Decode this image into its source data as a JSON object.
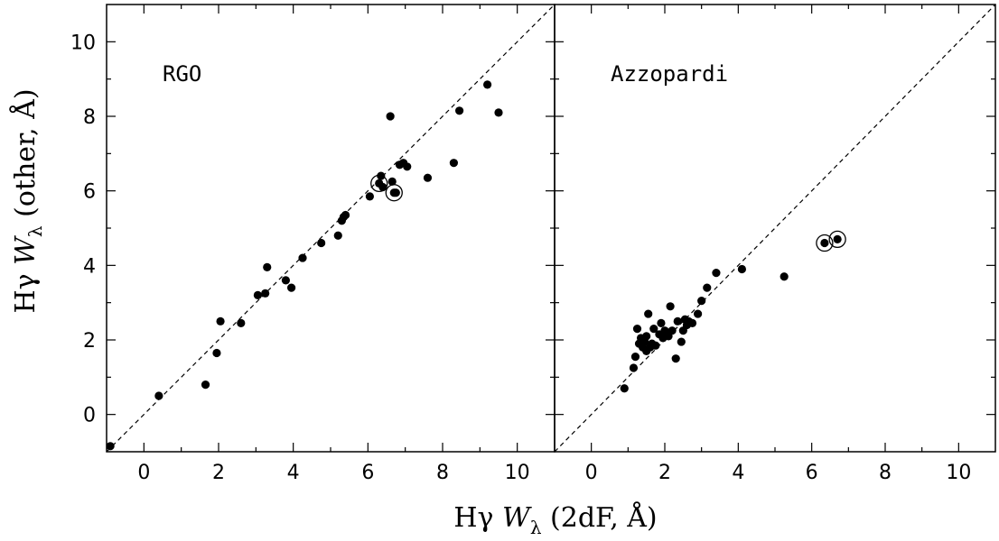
{
  "chart_data": [
    {
      "type": "scatter",
      "panel_label": "RGO",
      "xlim": [
        -1,
        11
      ],
      "ylim": [
        -1,
        11
      ],
      "x_ticks": [
        0,
        2,
        4,
        6,
        8,
        10
      ],
      "y_ticks": [
        0,
        2,
        4,
        6,
        8,
        10
      ],
      "reference_line": "y = x (dashed)",
      "points": [
        {
          "x": -0.9,
          "y": -0.85
        },
        {
          "x": 0.4,
          "y": 0.5
        },
        {
          "x": 1.65,
          "y": 0.8
        },
        {
          "x": 1.95,
          "y": 1.65
        },
        {
          "x": 2.05,
          "y": 2.5
        },
        {
          "x": 2.6,
          "y": 2.45
        },
        {
          "x": 3.05,
          "y": 3.2
        },
        {
          "x": 3.25,
          "y": 3.25
        },
        {
          "x": 3.3,
          "y": 3.95
        },
        {
          "x": 3.8,
          "y": 3.6
        },
        {
          "x": 3.95,
          "y": 3.4
        },
        {
          "x": 4.25,
          "y": 4.2
        },
        {
          "x": 4.75,
          "y": 4.6
        },
        {
          "x": 5.2,
          "y": 4.8
        },
        {
          "x": 5.3,
          "y": 5.2
        },
        {
          "x": 5.35,
          "y": 5.3
        },
        {
          "x": 5.4,
          "y": 5.35
        },
        {
          "x": 6.05,
          "y": 5.85
        },
        {
          "x": 6.3,
          "y": 6.2
        },
        {
          "x": 6.35,
          "y": 6.4
        },
        {
          "x": 6.4,
          "y": 6.1
        },
        {
          "x": 6.6,
          "y": 8.0
        },
        {
          "x": 6.65,
          "y": 6.25
        },
        {
          "x": 6.7,
          "y": 5.95
        },
        {
          "x": 6.75,
          "y": 5.95
        },
        {
          "x": 6.85,
          "y": 6.7
        },
        {
          "x": 6.95,
          "y": 6.75
        },
        {
          "x": 7.05,
          "y": 6.65
        },
        {
          "x": 7.6,
          "y": 6.35
        },
        {
          "x": 8.3,
          "y": 6.75
        },
        {
          "x": 8.45,
          "y": 8.15
        },
        {
          "x": 9.2,
          "y": 8.85
        },
        {
          "x": 9.5,
          "y": 8.1
        }
      ],
      "circled": [
        {
          "x": 6.3,
          "y": 6.2
        },
        {
          "x": 6.7,
          "y": 5.95
        }
      ]
    },
    {
      "type": "scatter",
      "panel_label": "Azzopardi",
      "xlim": [
        -1,
        11
      ],
      "ylim": [
        -1,
        11
      ],
      "x_ticks": [
        0,
        2,
        4,
        6,
        8,
        10
      ],
      "y_ticks": [
        0,
        2,
        4,
        6,
        8,
        10
      ],
      "reference_line": "y = x (dashed)",
      "points": [
        {
          "x": 0.9,
          "y": 0.7
        },
        {
          "x": 1.15,
          "y": 1.25
        },
        {
          "x": 1.2,
          "y": 1.55
        },
        {
          "x": 1.25,
          "y": 2.3
        },
        {
          "x": 1.3,
          "y": 1.9
        },
        {
          "x": 1.35,
          "y": 2.05
        },
        {
          "x": 1.4,
          "y": 1.8
        },
        {
          "x": 1.45,
          "y": 1.95
        },
        {
          "x": 1.5,
          "y": 1.7
        },
        {
          "x": 1.5,
          "y": 2.1
        },
        {
          "x": 1.55,
          "y": 2.7
        },
        {
          "x": 1.6,
          "y": 1.8
        },
        {
          "x": 1.65,
          "y": 1.9
        },
        {
          "x": 1.7,
          "y": 2.3
        },
        {
          "x": 1.75,
          "y": 1.85
        },
        {
          "x": 1.85,
          "y": 2.15
        },
        {
          "x": 1.9,
          "y": 2.45
        },
        {
          "x": 1.95,
          "y": 2.05
        },
        {
          "x": 2.0,
          "y": 2.25
        },
        {
          "x": 2.1,
          "y": 2.1
        },
        {
          "x": 2.15,
          "y": 2.9
        },
        {
          "x": 2.2,
          "y": 2.25
        },
        {
          "x": 2.3,
          "y": 1.5
        },
        {
          "x": 2.35,
          "y": 2.5
        },
        {
          "x": 2.45,
          "y": 1.95
        },
        {
          "x": 2.5,
          "y": 2.25
        },
        {
          "x": 2.55,
          "y": 2.55
        },
        {
          "x": 2.6,
          "y": 2.4
        },
        {
          "x": 2.65,
          "y": 2.5
        },
        {
          "x": 2.75,
          "y": 2.45
        },
        {
          "x": 2.9,
          "y": 2.7
        },
        {
          "x": 3.0,
          "y": 3.05
        },
        {
          "x": 3.15,
          "y": 3.4
        },
        {
          "x": 3.4,
          "y": 3.8
        },
        {
          "x": 4.1,
          "y": 3.9
        },
        {
          "x": 5.25,
          "y": 3.7
        },
        {
          "x": 6.35,
          "y": 4.6
        },
        {
          "x": 6.7,
          "y": 4.7
        }
      ],
      "circled": [
        {
          "x": 6.35,
          "y": 4.6
        },
        {
          "x": 6.7,
          "y": 4.7
        }
      ]
    }
  ],
  "y_label": {
    "main": "Hγ ",
    "w": "W",
    "sub": "λ",
    "rest": " (other, Å)"
  },
  "x_label": {
    "main": "Hγ ",
    "w": "W",
    "sub": "λ",
    "rest": " (2dF, Å)"
  }
}
